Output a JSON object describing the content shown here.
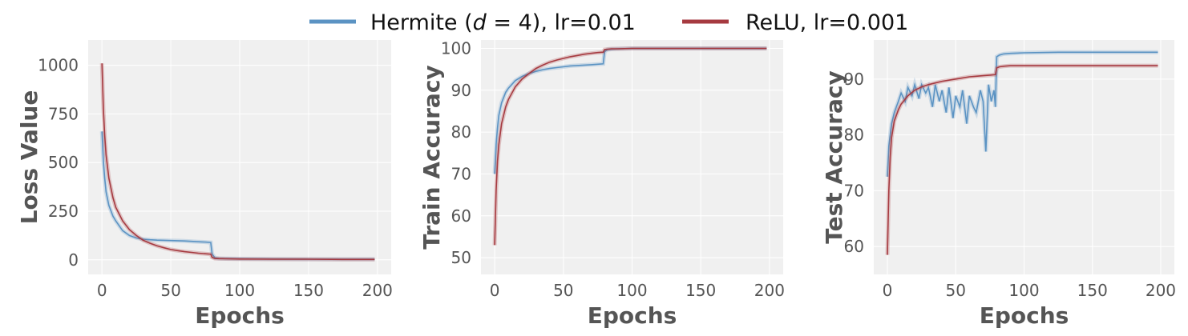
{
  "legend": {
    "entries": [
      {
        "label_prefix": "Hermite (",
        "label_var": "d",
        "label_op": " = ",
        "label_num": "4",
        "label_suffix": "), lr=0.01",
        "color": "#5b93c3"
      },
      {
        "label": "ReLU, lr=0.001",
        "color": "#a63a40"
      }
    ]
  },
  "chart_data": [
    {
      "type": "line",
      "xlabel": "Epochs",
      "ylabel": "Loss Value",
      "xlim": [
        -10,
        210
      ],
      "ylim": [
        -75,
        1130
      ],
      "xticks": [
        0,
        50,
        100,
        150,
        200
      ],
      "xtick_labels": [
        "0",
        "50",
        "100",
        "150",
        "200"
      ],
      "yticks": [
        0,
        250,
        500,
        750,
        1000
      ],
      "ytick_labels": [
        "0",
        "250",
        "500",
        "750",
        "1000"
      ],
      "grid": true,
      "series": [
        {
          "name": "Hermite (d = 4), lr=0.01",
          "color": "#5b93c3",
          "x": [
            0,
            1,
            2,
            3,
            5,
            8,
            10,
            15,
            20,
            25,
            30,
            35,
            40,
            45,
            50,
            55,
            60,
            65,
            70,
            75,
            79,
            80,
            82,
            85,
            90,
            100,
            125,
            150,
            175,
            198
          ],
          "y": [
            660,
            510,
            420,
            350,
            280,
            225,
            200,
            150,
            125,
            112,
            106,
            103,
            101,
            100,
            99,
            98,
            97,
            95,
            93,
            91,
            89,
            30,
            10,
            7,
            6,
            5,
            4,
            3,
            3,
            3
          ]
        },
        {
          "name": "ReLU, lr=0.001",
          "color": "#a63a40",
          "x": [
            0,
            1,
            2,
            3,
            5,
            8,
            10,
            15,
            20,
            25,
            30,
            35,
            40,
            45,
            50,
            55,
            60,
            65,
            70,
            75,
            79,
            80,
            82,
            85,
            90,
            100,
            125,
            150,
            175,
            198
          ],
          "y": [
            1010,
            780,
            640,
            540,
            420,
            320,
            270,
            200,
            155,
            125,
            100,
            85,
            72,
            62,
            53,
            47,
            42,
            38,
            34,
            31,
            29,
            12,
            7,
            6,
            5,
            4,
            3,
            3,
            2,
            2
          ]
        }
      ]
    },
    {
      "type": "line",
      "xlabel": "Epochs",
      "ylabel": "Train Accuracy",
      "xlim": [
        -10,
        210
      ],
      "ylim": [
        46,
        102
      ],
      "xticks": [
        0,
        50,
        100,
        150,
        200
      ],
      "xtick_labels": [
        "0",
        "50",
        "100",
        "150",
        "200"
      ],
      "yticks": [
        50,
        60,
        70,
        80,
        90,
        100
      ],
      "ytick_labels": [
        "50",
        "60",
        "70",
        "80",
        "90",
        "100"
      ],
      "grid": true,
      "series": [
        {
          "name": "Hermite (d = 4), lr=0.01",
          "color": "#5b93c3",
          "x": [
            0,
            1,
            2,
            3,
            5,
            8,
            10,
            15,
            20,
            25,
            30,
            35,
            40,
            45,
            50,
            55,
            60,
            65,
            70,
            75,
            79,
            80,
            82,
            85,
            90,
            100,
            125,
            150,
            175,
            198
          ],
          "y": [
            70,
            77,
            81,
            84,
            87,
            89.5,
            90.5,
            92.3,
            93.3,
            94.0,
            94.5,
            94.9,
            95.2,
            95.4,
            95.6,
            95.8,
            95.9,
            96.0,
            96.1,
            96.2,
            96.3,
            99.2,
            99.7,
            99.8,
            99.9,
            100,
            100,
            100,
            100,
            100
          ]
        },
        {
          "name": "ReLU, lr=0.001",
          "color": "#a63a40",
          "x": [
            0,
            1,
            2,
            3,
            5,
            8,
            10,
            15,
            20,
            25,
            30,
            35,
            40,
            45,
            50,
            55,
            60,
            65,
            70,
            75,
            79,
            80,
            82,
            85,
            90,
            100,
            125,
            150,
            175,
            198
          ],
          "y": [
            53,
            66,
            73,
            77,
            82,
            86,
            87.8,
            90.8,
            92.7,
            94.0,
            95.2,
            96.0,
            96.7,
            97.2,
            97.6,
            98.0,
            98.3,
            98.6,
            98.8,
            99.0,
            99.1,
            99.7,
            99.8,
            99.9,
            99.9,
            100,
            100,
            100,
            100,
            100
          ]
        }
      ]
    },
    {
      "type": "line",
      "xlabel": "Epochs",
      "ylabel": "Test Accuracy",
      "xlim": [
        -10,
        210
      ],
      "ylim": [
        55,
        97
      ],
      "xticks": [
        0,
        50,
        100,
        150,
        200
      ],
      "xtick_labels": [
        "0",
        "50",
        "100",
        "150",
        "200"
      ],
      "yticks": [
        60,
        70,
        80,
        90
      ],
      "ytick_labels": [
        "60",
        "70",
        "80",
        "90"
      ],
      "grid": true,
      "series": [
        {
          "name": "Hermite (d = 4), lr=0.01",
          "color": "#5b93c3",
          "x": [
            0,
            1,
            2,
            3,
            5,
            8,
            10,
            13,
            15,
            18,
            20,
            23,
            25,
            28,
            30,
            33,
            35,
            38,
            40,
            43,
            45,
            48,
            50,
            53,
            55,
            58,
            60,
            63,
            65,
            68,
            70,
            72,
            74,
            76,
            78,
            79,
            80,
            82,
            85,
            90,
            100,
            125,
            150,
            175,
            198
          ],
          "y": [
            72.5,
            78,
            80,
            82,
            84,
            86,
            87.5,
            86,
            88.5,
            87,
            89,
            86.5,
            89,
            87.5,
            88.5,
            85,
            89,
            86,
            88,
            84,
            88.5,
            83,
            87,
            85,
            88,
            82,
            87,
            85,
            84,
            88,
            86,
            77,
            89,
            86,
            88,
            85,
            94.0,
            94.3,
            94.5,
            94.6,
            94.7,
            94.8,
            94.8,
            94.8,
            94.8
          ]
        },
        {
          "name": "ReLU, lr=0.001",
          "color": "#a63a40",
          "x": [
            0,
            1,
            2,
            3,
            5,
            8,
            10,
            15,
            20,
            25,
            30,
            35,
            40,
            45,
            50,
            55,
            60,
            65,
            70,
            75,
            79,
            80,
            82,
            85,
            90,
            100,
            125,
            150,
            175,
            198
          ],
          "y": [
            58.5,
            70,
            76,
            79.5,
            82.5,
            84.5,
            85.5,
            87,
            88.0,
            88.6,
            89.0,
            89.3,
            89.6,
            89.8,
            90.0,
            90.2,
            90.4,
            90.5,
            90.6,
            90.7,
            90.8,
            92.0,
            92.2,
            92.3,
            92.4,
            92.4,
            92.4,
            92.4,
            92.4,
            92.4
          ]
        }
      ]
    }
  ]
}
